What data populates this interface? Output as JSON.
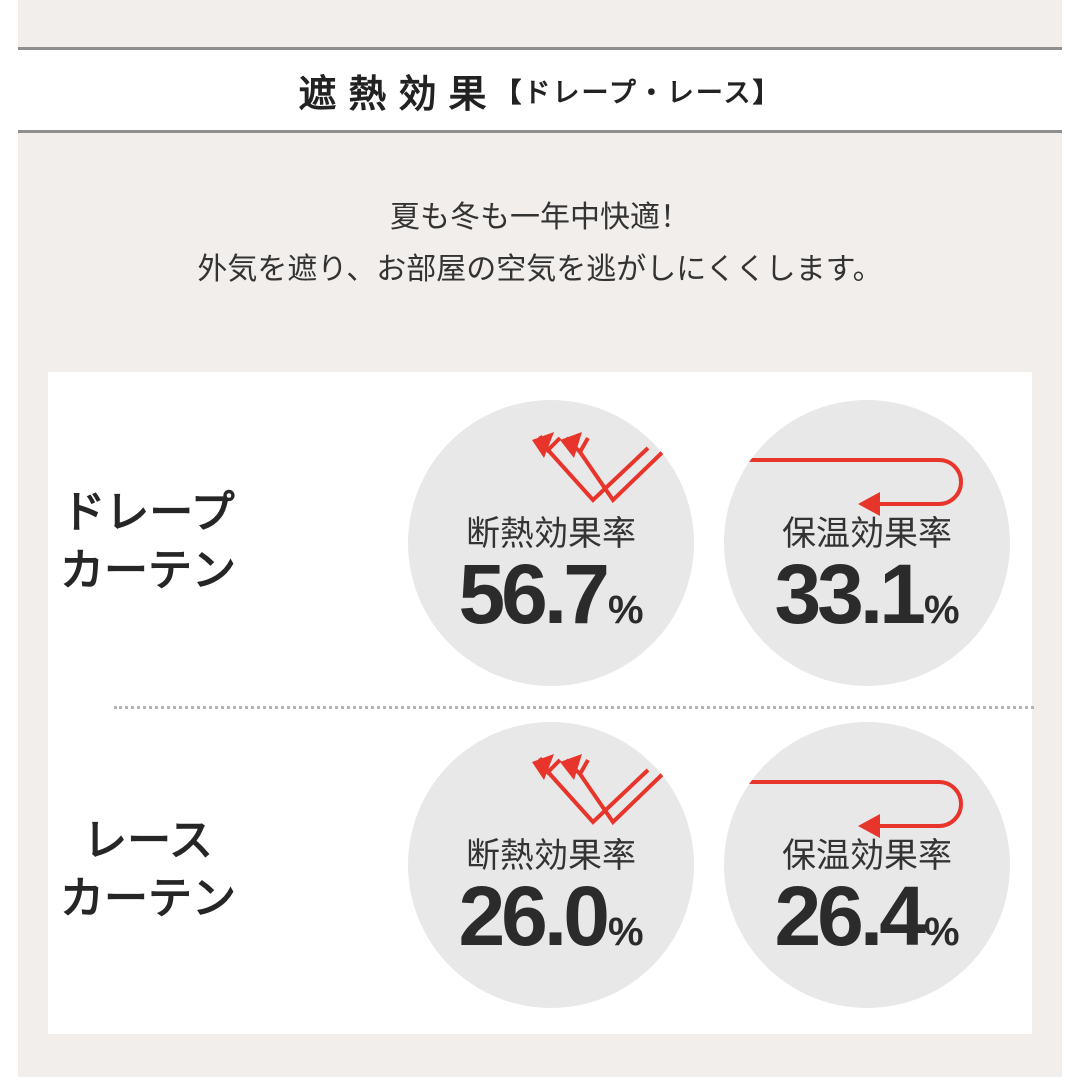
{
  "header": {
    "title_main": "遮熱効果",
    "title_sub": "【ドレープ・レース】"
  },
  "intro": {
    "line1": "夏も冬も一年中快適！",
    "line2": "外気を遮り、お部屋の空気を逃がしにくくします。"
  },
  "rows": [
    {
      "label_line1": "ドレープ",
      "label_line2": "カーテン",
      "metrics": [
        {
          "label": "断熱効果率",
          "value": "56.7",
          "unit": "%",
          "icon": "heat-reflect-arrows-icon"
        },
        {
          "label": "保温効果率",
          "value": "33.1",
          "unit": "%",
          "icon": "heat-return-arrow-icon"
        }
      ]
    },
    {
      "label_line1": "レース",
      "label_line2": "カーテン",
      "metrics": [
        {
          "label": "断熱効果率",
          "value": "26.0",
          "unit": "%",
          "icon": "heat-reflect-arrows-icon"
        },
        {
          "label": "保温効果率",
          "value": "26.4",
          "unit": "%",
          "icon": "heat-return-arrow-icon"
        }
      ]
    }
  ],
  "colors": {
    "accent_red": "#e8352c",
    "panel_bg": "#f1eeeb",
    "circle_bg": "#e8e8e8"
  }
}
